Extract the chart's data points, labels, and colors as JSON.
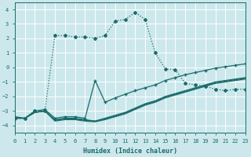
{
  "xlabel": "Humidex (Indice chaleur)",
  "bg_color": "#cce8ec",
  "grid_color": "#ffffff",
  "line_color": "#1a6b6b",
  "xlim": [
    0,
    23
  ],
  "ylim": [
    -4.5,
    4.5
  ],
  "xticks": [
    0,
    1,
    2,
    3,
    4,
    5,
    6,
    7,
    8,
    9,
    10,
    11,
    12,
    13,
    14,
    15,
    16,
    17,
    18,
    19,
    20,
    21,
    22,
    23
  ],
  "yticks": [
    -4,
    -3,
    -2,
    -1,
    0,
    1,
    2,
    3,
    4
  ],
  "main_x": [
    0,
    1,
    2,
    3,
    4,
    5,
    6,
    7,
    8,
    9,
    10,
    11,
    12,
    13,
    14,
    15,
    16,
    17,
    18,
    19,
    20,
    21,
    22,
    23
  ],
  "main_y": [
    -3.5,
    -3.5,
    -3.0,
    -3.0,
    2.2,
    2.2,
    2.1,
    2.1,
    2.0,
    2.2,
    3.2,
    3.3,
    3.8,
    3.3,
    1.0,
    -0.1,
    -0.15,
    -1.1,
    -1.2,
    -1.3,
    -1.5,
    -1.6,
    -1.5,
    -1.5
  ],
  "line1_x": [
    0,
    1,
    2,
    3,
    4,
    5,
    6,
    7,
    8,
    9,
    10,
    11,
    12,
    13,
    14,
    15,
    16,
    17,
    18,
    19,
    20,
    21,
    22,
    23
  ],
  "line1_y": [
    -3.5,
    -3.5,
    -3.1,
    -3.0,
    -3.6,
    -3.5,
    -3.5,
    -3.6,
    -3.7,
    -3.5,
    -3.3,
    -3.1,
    -2.8,
    -2.5,
    -2.3,
    -2.0,
    -1.8,
    -1.6,
    -1.4,
    -1.2,
    -1.0,
    -0.9,
    -0.8,
    -0.7
  ],
  "line2_x": [
    0,
    1,
    2,
    3,
    4,
    5,
    6,
    7,
    8,
    9,
    10,
    11,
    12,
    13,
    14,
    15,
    16,
    17,
    18,
    19,
    20,
    21,
    22,
    23
  ],
  "line2_y": [
    -3.5,
    -3.5,
    -3.1,
    -3.0,
    -3.65,
    -3.55,
    -3.55,
    -3.65,
    -3.7,
    -3.55,
    -3.35,
    -3.15,
    -2.85,
    -2.55,
    -2.35,
    -2.05,
    -1.85,
    -1.65,
    -1.45,
    -1.25,
    -1.05,
    -0.95,
    -0.85,
    -0.75
  ],
  "line3_x": [
    0,
    1,
    2,
    3,
    4,
    5,
    6,
    7,
    8,
    9,
    10,
    11,
    12,
    13,
    14,
    15,
    16,
    17,
    18,
    19,
    20,
    21,
    22,
    23
  ],
  "line3_y": [
    -3.5,
    -3.5,
    -3.1,
    -3.0,
    -3.7,
    -3.6,
    -3.6,
    -3.7,
    -3.75,
    -3.6,
    -3.4,
    -3.2,
    -2.9,
    -2.6,
    -2.4,
    -2.1,
    -1.9,
    -1.7,
    -1.5,
    -1.3,
    -1.1,
    -1.0,
    -0.9,
    -0.8
  ],
  "upper_x": [
    0,
    1,
    2,
    3,
    4,
    5,
    6,
    7,
    8,
    9,
    10,
    11,
    12,
    13,
    14,
    15,
    16,
    17,
    18,
    19,
    20,
    21,
    22,
    23
  ],
  "upper_y": [
    -3.4,
    -3.5,
    -3.0,
    -2.9,
    -3.5,
    -3.4,
    -3.4,
    -3.5,
    -0.9,
    -2.4,
    -2.1,
    -1.85,
    -1.6,
    -1.4,
    -1.2,
    -0.9,
    -0.7,
    -0.5,
    -0.35,
    -0.2,
    -0.05,
    0.05,
    0.15,
    0.25
  ]
}
